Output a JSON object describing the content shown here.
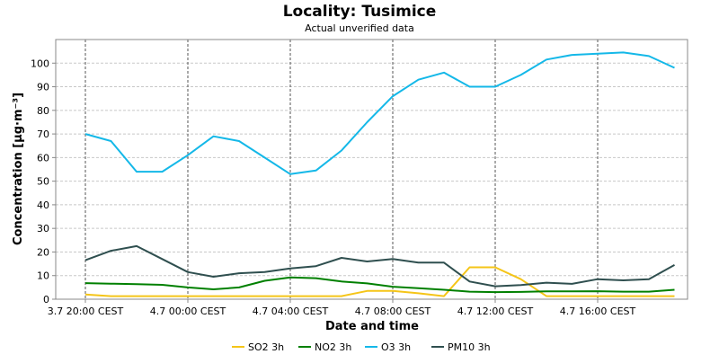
{
  "chart_data": {
    "type": "line",
    "title": "Locality: Tusimice",
    "subtitle": "Actual unverified data",
    "xlabel": "Date and time",
    "ylabel": "Concentration [µg·m⁻³]",
    "ylim": [
      0,
      110
    ],
    "yticks": [
      0,
      10,
      20,
      30,
      40,
      50,
      60,
      70,
      80,
      90,
      100
    ],
    "x": [
      "3.7 20:00",
      "3.7 21:00",
      "3.7 22:00",
      "3.7 23:00",
      "4.7 00:00",
      "4.7 01:00",
      "4.7 02:00",
      "4.7 03:00",
      "4.7 04:00",
      "4.7 05:00",
      "4.7 06:00",
      "4.7 07:00",
      "4.7 08:00",
      "4.7 09:00",
      "4.7 10:00",
      "4.7 11:00",
      "4.7 12:00",
      "4.7 13:00",
      "4.7 14:00",
      "4.7 15:00",
      "4.7 16:00",
      "4.7 17:00",
      "4.7 18:00",
      "4.7 19:00"
    ],
    "x_tick_labels": [
      {
        "label": "3.7 20:00 CEST",
        "index": 0
      },
      {
        "label": "4.7 00:00 CEST",
        "index": 4
      },
      {
        "label": "4.7 04:00 CEST",
        "index": 8
      },
      {
        "label": "4.7 08:00 CEST",
        "index": 12
      },
      {
        "label": "4.7 12:00 CEST",
        "index": 16
      },
      {
        "label": "4.7 16:00 CEST",
        "index": 20
      }
    ],
    "grid": true,
    "legend_position": "bottom",
    "series": [
      {
        "name": "SO2 3h",
        "color": "#f5c518",
        "values": [
          2.0,
          1.3,
          1.3,
          1.3,
          1.3,
          1.3,
          1.3,
          1.3,
          1.3,
          1.3,
          1.3,
          3.5,
          3.5,
          2.5,
          1.3,
          13.5,
          13.5,
          8.5,
          1.3,
          1.3,
          1.3,
          1.3,
          1.3,
          1.3
        ]
      },
      {
        "name": "NO2 3h",
        "color": "#008000",
        "values": [
          6.8,
          6.6,
          6.4,
          6.1,
          5.0,
          4.2,
          5.0,
          7.8,
          9.2,
          8.9,
          7.5,
          6.7,
          5.3,
          4.7,
          4.0,
          3.2,
          3.0,
          3.1,
          3.3,
          3.3,
          3.4,
          3.2,
          3.2,
          4.0
        ]
      },
      {
        "name": "O3 3h",
        "color": "#14b8e8",
        "values": [
          70.0,
          67.0,
          54.0,
          54.0,
          61.0,
          69.0,
          67.0,
          60.0,
          53.0,
          54.5,
          63.0,
          75.0,
          86.0,
          93.0,
          96.0,
          90.0,
          90.0,
          95.0,
          101.5,
          103.5,
          104.0,
          104.5,
          103.0,
          98.0
        ]
      },
      {
        "name": "PM10 3h",
        "color": "#2f4f4f",
        "values": [
          16.5,
          20.5,
          22.5,
          17.0,
          11.5,
          9.5,
          11.0,
          11.5,
          13.0,
          14.0,
          17.5,
          16.0,
          17.0,
          15.5,
          15.5,
          7.5,
          5.5,
          6.0,
          7.0,
          6.5,
          8.5,
          8.0,
          8.5,
          14.5
        ]
      }
    ]
  }
}
